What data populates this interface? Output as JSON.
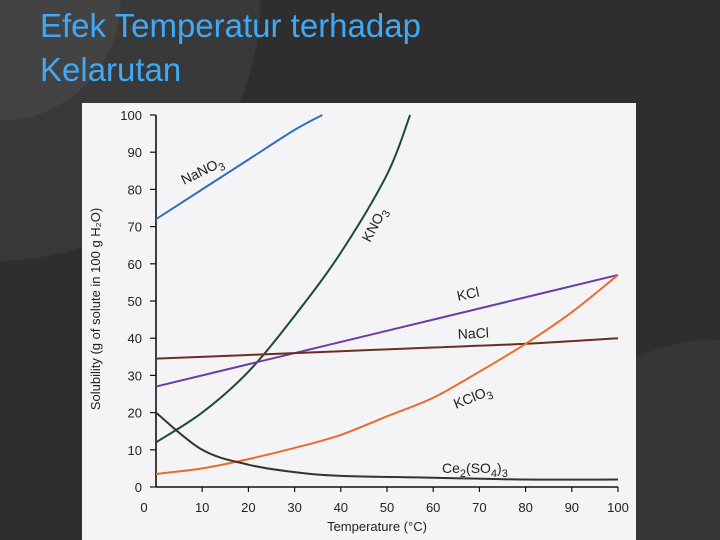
{
  "slide": {
    "title_line1": "Efek Temperatur terhadap",
    "title_line2": "Kelarutan"
  },
  "chart_data": {
    "type": "line",
    "title": "",
    "xlabel": "Temperature (°C)",
    "ylabel": "Solubility (g of solute in 100 g H₂O)",
    "xlim": [
      0,
      100
    ],
    "ylim": [
      0,
      100
    ],
    "x_ticks": [
      "0",
      "10",
      "20",
      "30",
      "40",
      "50",
      "60",
      "70",
      "80",
      "90",
      "100"
    ],
    "y_ticks": [
      "0",
      "10",
      "20",
      "30",
      "40",
      "50",
      "60",
      "70",
      "80",
      "90",
      "100"
    ],
    "grid": false,
    "legend": "inline labels",
    "series": [
      {
        "name": "NaNO3",
        "label_main": "NaNO",
        "label_sub": "3",
        "label_tail": "",
        "color": "#2f6fc2",
        "x": [
          0,
          10,
          20,
          30,
          36
        ],
        "y": [
          72,
          80,
          88,
          96,
          100
        ]
      },
      {
        "name": "KNO3",
        "label_main": "KNO",
        "label_sub": "3",
        "label_tail": "",
        "color": "#1d4a34",
        "x": [
          0,
          10,
          20,
          30,
          40,
          50,
          55
        ],
        "y": [
          12,
          20,
          31,
          46,
          63,
          84,
          100
        ]
      },
      {
        "name": "KCl",
        "label_main": "KCl",
        "label_sub": "",
        "label_tail": "",
        "color": "#6c3ea3",
        "x": [
          0,
          20,
          40,
          60,
          80,
          100
        ],
        "y": [
          27,
          33,
          39,
          45,
          51,
          57
        ]
      },
      {
        "name": "NaCl",
        "label_main": "NaCl",
        "label_sub": "",
        "label_tail": "",
        "color": "#6b2e1e",
        "x": [
          0,
          20,
          40,
          60,
          80,
          100
        ],
        "y": [
          34.5,
          35.5,
          36.5,
          37.5,
          38.5,
          40
        ]
      },
      {
        "name": "KClO3",
        "label_main": "KClO",
        "label_sub": "3",
        "label_tail": "",
        "color": "#ee6a2a",
        "x": [
          0,
          10,
          20,
          30,
          40,
          50,
          60,
          70,
          80,
          90,
          100
        ],
        "y": [
          3.5,
          5,
          7.5,
          10.5,
          14,
          19,
          24,
          31,
          38.5,
          47,
          57
        ]
      },
      {
        "name": "Ce2(SO4)3",
        "label_main": "Ce",
        "label_sub": "2",
        "label_tail": "(SO",
        "label_sub2": "4",
        "label_tail2": ")",
        "label_sub3": "3",
        "color": "#333333",
        "x": [
          0,
          10,
          20,
          30,
          40,
          60,
          80,
          100
        ],
        "y": [
          20,
          10,
          6,
          4,
          3,
          2.5,
          2,
          2
        ]
      }
    ]
  }
}
